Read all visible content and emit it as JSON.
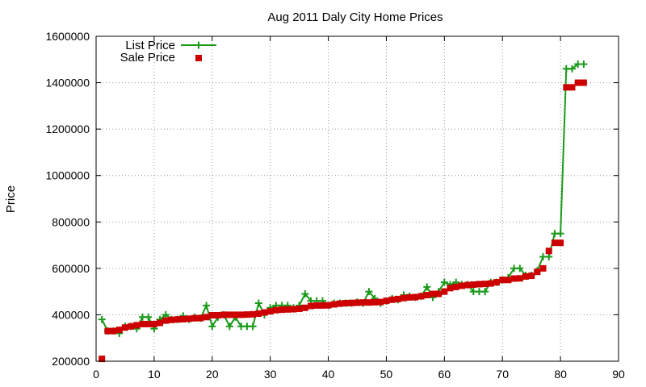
{
  "chart_data": {
    "type": "line",
    "title": "Aug 2011 Daly City Home Prices",
    "xlabel": "",
    "ylabel": "Price",
    "xlim": [
      0,
      90
    ],
    "ylim": [
      200000,
      1600000
    ],
    "xticks": [
      0,
      10,
      20,
      30,
      40,
      50,
      60,
      70,
      80,
      90
    ],
    "yticks": [
      200000,
      400000,
      600000,
      800000,
      1000000,
      1200000,
      1400000,
      1600000
    ],
    "grid": true,
    "legend_position": "top-left",
    "series": [
      {
        "name": "List Price",
        "style": "line-with-plus-markers",
        "color": "#1a9a1a",
        "x": [
          1,
          2,
          3,
          4,
          5,
          6,
          7,
          8,
          9,
          10,
          11,
          12,
          13,
          14,
          15,
          16,
          17,
          18,
          19,
          20,
          21,
          22,
          23,
          24,
          25,
          26,
          27,
          28,
          29,
          30,
          31,
          32,
          33,
          34,
          35,
          36,
          37,
          38,
          39,
          40,
          41,
          42,
          43,
          44,
          45,
          46,
          47,
          48,
          49,
          50,
          51,
          52,
          53,
          54,
          55,
          56,
          57,
          58,
          59,
          60,
          61,
          62,
          63,
          64,
          65,
          66,
          67,
          68,
          69,
          70,
          71,
          72,
          73,
          74,
          75,
          76,
          77,
          78,
          79,
          80,
          81,
          82,
          83,
          84
        ],
        "y": [
          380000,
          330000,
          330000,
          320000,
          350000,
          350000,
          340000,
          390000,
          390000,
          340000,
          380000,
          400000,
          380000,
          380000,
          395000,
          380000,
          390000,
          385000,
          440000,
          350000,
          390000,
          400000,
          350000,
          390000,
          350000,
          350000,
          350000,
          450000,
          400000,
          430000,
          440000,
          440000,
          440000,
          430000,
          440000,
          490000,
          460000,
          460000,
          460000,
          440000,
          450000,
          450000,
          450000,
          450000,
          455000,
          450000,
          500000,
          470000,
          450000,
          460000,
          470000,
          465000,
          485000,
          480000,
          475000,
          480000,
          520000,
          475000,
          500000,
          540000,
          530000,
          540000,
          530000,
          530000,
          500000,
          500000,
          500000,
          540000,
          540000,
          550000,
          560000,
          600000,
          600000,
          570000,
          570000,
          590000,
          650000,
          650000,
          750000,
          750000,
          1460000,
          1460000,
          1480000,
          1480000
        ]
      },
      {
        "name": "Sale Price",
        "style": "square-markers",
        "color": "#cc0000",
        "x": [
          1,
          2,
          3,
          4,
          5,
          6,
          7,
          8,
          9,
          10,
          11,
          12,
          13,
          14,
          15,
          16,
          17,
          18,
          19,
          20,
          21,
          22,
          23,
          24,
          25,
          26,
          27,
          28,
          29,
          30,
          31,
          32,
          33,
          34,
          35,
          36,
          37,
          38,
          39,
          40,
          41,
          42,
          43,
          44,
          45,
          46,
          47,
          48,
          49,
          50,
          51,
          52,
          53,
          54,
          55,
          56,
          57,
          58,
          59,
          60,
          61,
          62,
          63,
          64,
          65,
          66,
          67,
          68,
          69,
          70,
          71,
          72,
          73,
          74,
          75,
          76,
          77,
          78,
          79,
          80,
          81,
          82,
          83,
          84
        ],
        "y": [
          210000,
          330000,
          330000,
          335000,
          345000,
          350000,
          355000,
          360000,
          360000,
          360000,
          365000,
          375000,
          378000,
          380000,
          381000,
          383000,
          385000,
          386000,
          390000,
          398000,
          398000,
          400000,
          400000,
          400000,
          400000,
          401000,
          402000,
          405000,
          410000,
          415000,
          420000,
          422000,
          423000,
          424000,
          426000,
          430000,
          438000,
          440000,
          440000,
          441000,
          445000,
          448000,
          450000,
          451000,
          452000,
          453000,
          453000,
          454000,
          455000,
          460000,
          465000,
          468000,
          472000,
          475000,
          476000,
          480000,
          485000,
          490000,
          490000,
          500000,
          515000,
          520000,
          525000,
          528000,
          530000,
          532000,
          533000,
          535000,
          540000,
          550000,
          550000,
          556000,
          557000,
          565000,
          568000,
          585000,
          600000,
          675000,
          710000,
          710000,
          1380000,
          1380000,
          1400000,
          1400000
        ]
      }
    ]
  }
}
